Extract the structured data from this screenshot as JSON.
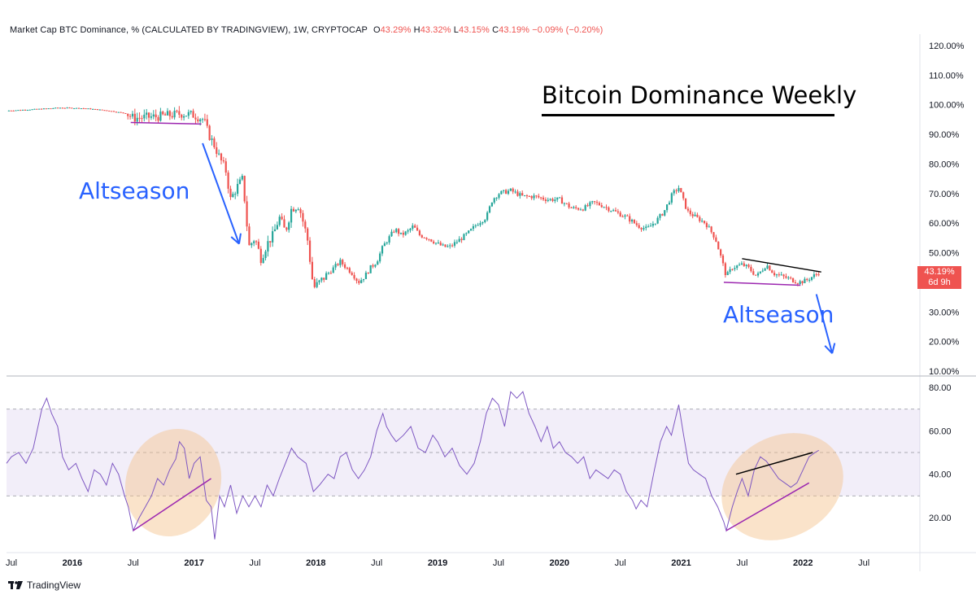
{
  "header": {
    "symbol_text": "Market Cap BTC Dominance, % (CALCULATED BY TRADINGVIEW), 1W, CRYPTOCAP",
    "open_label": "O",
    "open_value": "43.29%",
    "high_label": "H",
    "high_value": "43.32%",
    "low_label": "L",
    "low_value": "43.15%",
    "close_label": "C",
    "close_value": "43.19%",
    "change": "−0.09% (−0.20%)"
  },
  "title": "Bitcoin Dominance Weekly",
  "annotations": [
    "Altseason",
    "Altseason"
  ],
  "price_tag": {
    "value": "43.19%",
    "countdown": "6d 9h"
  },
  "brand": "TradingView",
  "colors": {
    "up": "#26a69a",
    "down": "#ef5350",
    "rsi": "#7e57c2",
    "arrow": "#2962ff",
    "divergence": "#9c27b0"
  },
  "chart_data": [
    {
      "type": "candlestick",
      "title": "Bitcoin Dominance Weekly",
      "ylim": [
        0,
        125
      ],
      "y_ticks": [
        "120.00%",
        "110.00%",
        "100.00%",
        "90.00%",
        "80.00%",
        "70.00%",
        "60.00%",
        "50.00%",
        "40.00%",
        "30.00%",
        "20.00%",
        "10.00%"
      ],
      "x_ticks": [
        "Jul",
        "2016",
        "Jul",
        "2017",
        "Jul",
        "2018",
        "Jul",
        "2019",
        "Jul",
        "2020",
        "Jul",
        "2021",
        "Jul",
        "2022",
        "Jul"
      ],
      "x_tick_dates": [
        2015.5,
        2016.0,
        2016.5,
        2017.0,
        2017.5,
        2018.0,
        2018.5,
        2019.0,
        2019.5,
        2020.0,
        2020.5,
        2021.0,
        2021.5,
        2022.0,
        2022.5
      ],
      "x_range": [
        2015.46,
        2022.96
      ],
      "close_path": [
        [
          2015.46,
          98.0
        ],
        [
          2015.7,
          98.5
        ],
        [
          2015.9,
          99.0
        ],
        [
          2016.1,
          98.8
        ],
        [
          2016.3,
          98.0
        ],
        [
          2016.45,
          97.0
        ],
        [
          2016.5,
          95.5
        ],
        [
          2016.7,
          96.0
        ],
        [
          2016.9,
          97.0
        ],
        [
          2017.0,
          96.5
        ],
        [
          2017.08,
          95.0
        ],
        [
          2017.12,
          90.0
        ],
        [
          2017.17,
          86.0
        ],
        [
          2017.21,
          82.0
        ],
        [
          2017.26,
          78.0
        ],
        [
          2017.3,
          68.0
        ],
        [
          2017.35,
          72.0
        ],
        [
          2017.4,
          75.0
        ],
        [
          2017.45,
          52.0
        ],
        [
          2017.5,
          55.0
        ],
        [
          2017.55,
          48.0
        ],
        [
          2017.6,
          53.0
        ],
        [
          2017.65,
          56.0
        ],
        [
          2017.7,
          62.0
        ],
        [
          2017.75,
          57.0
        ],
        [
          2017.8,
          65.0
        ],
        [
          2017.86,
          66.0
        ],
        [
          2017.93,
          55.0
        ],
        [
          2017.98,
          38.0
        ],
        [
          2018.03,
          40.0
        ],
        [
          2018.1,
          43.0
        ],
        [
          2018.15,
          45.0
        ],
        [
          2018.2,
          47.0
        ],
        [
          2018.25,
          45.0
        ],
        [
          2018.3,
          43.0
        ],
        [
          2018.35,
          40.0
        ],
        [
          2018.4,
          42.0
        ],
        [
          2018.45,
          45.0
        ],
        [
          2018.5,
          47.0
        ],
        [
          2018.55,
          52.0
        ],
        [
          2018.6,
          55.0
        ],
        [
          2018.65,
          58.0
        ],
        [
          2018.7,
          56.0
        ],
        [
          2018.75,
          57.0
        ],
        [
          2018.8,
          59.0
        ],
        [
          2018.85,
          56.0
        ],
        [
          2018.92,
          55.0
        ],
        [
          2019.0,
          53.0
        ],
        [
          2019.05,
          52.0
        ],
        [
          2019.1,
          52.0
        ],
        [
          2019.2,
          55.0
        ],
        [
          2019.26,
          57.0
        ],
        [
          2019.33,
          60.0
        ],
        [
          2019.4,
          62.0
        ],
        [
          2019.45,
          68.0
        ],
        [
          2019.5,
          70.0
        ],
        [
          2019.6,
          71.0
        ],
        [
          2019.7,
          69.0
        ],
        [
          2019.8,
          69.0
        ],
        [
          2019.9,
          68.0
        ],
        [
          2020.0,
          68.0
        ],
        [
          2020.1,
          65.0
        ],
        [
          2020.2,
          65.0
        ],
        [
          2020.28,
          67.0
        ],
        [
          2020.35,
          66.0
        ],
        [
          2020.45,
          64.0
        ],
        [
          2020.55,
          62.0
        ],
        [
          2020.65,
          59.0
        ],
        [
          2020.72,
          58.0
        ],
        [
          2020.8,
          61.0
        ],
        [
          2020.86,
          64.0
        ],
        [
          2020.93,
          70.0
        ],
        [
          2020.98,
          72.0
        ],
        [
          2021.05,
          64.0
        ],
        [
          2021.12,
          62.0
        ],
        [
          2021.2,
          60.0
        ],
        [
          2021.28,
          55.0
        ],
        [
          2021.33,
          48.0
        ],
        [
          2021.37,
          42.0
        ],
        [
          2021.42,
          45.0
        ],
        [
          2021.5,
          46.0
        ],
        [
          2021.55,
          45.0
        ],
        [
          2021.62,
          42.0
        ],
        [
          2021.7,
          46.0
        ],
        [
          2021.76,
          43.0
        ],
        [
          2021.83,
          42.0
        ],
        [
          2021.9,
          41.0
        ],
        [
          2021.96,
          40.0
        ],
        [
          2022.02,
          40.5
        ],
        [
          2022.08,
          42.0
        ],
        [
          2022.13,
          43.2
        ]
      ],
      "trendlines": [
        {
          "color": "purple",
          "from": [
            2016.48,
            94.0
          ],
          "to": [
            2017.06,
            93.5
          ]
        },
        {
          "color": "purple",
          "from": [
            2021.35,
            40.0
          ],
          "to": [
            2021.98,
            39.0
          ]
        },
        {
          "color": "black",
          "from": [
            2021.5,
            48.0
          ],
          "to": [
            2022.15,
            43.5
          ]
        }
      ],
      "arrows": [
        {
          "from": [
            2017.07,
            87.0
          ],
          "to": [
            2017.37,
            53.0
          ]
        },
        {
          "from": [
            2022.11,
            36.0
          ],
          "to": [
            2022.24,
            16.0
          ]
        }
      ]
    },
    {
      "type": "line",
      "series": [
        {
          "name": "",
          "values": []
        }
      ],
      "ylim": [
        0,
        85
      ],
      "y_ticks": [
        "80.00",
        "60.00",
        "40.00",
        "20.00"
      ],
      "bands": {
        "upper": 70,
        "middle": 50,
        "lower": 30
      },
      "rsi_path": [
        [
          2015.46,
          45
        ],
        [
          2015.5,
          48
        ],
        [
          2015.56,
          50
        ],
        [
          2015.62,
          45
        ],
        [
          2015.68,
          52
        ],
        [
          2015.75,
          70
        ],
        [
          2015.79,
          75
        ],
        [
          2015.83,
          68
        ],
        [
          2015.88,
          62
        ],
        [
          2015.92,
          48
        ],
        [
          2015.97,
          42
        ],
        [
          2016.03,
          45
        ],
        [
          2016.08,
          38
        ],
        [
          2016.13,
          32
        ],
        [
          2016.18,
          42
        ],
        [
          2016.23,
          40
        ],
        [
          2016.28,
          35
        ],
        [
          2016.33,
          45
        ],
        [
          2016.38,
          40
        ],
        [
          2016.43,
          30
        ],
        [
          2016.46,
          25
        ],
        [
          2016.5,
          14
        ],
        [
          2016.55,
          20
        ],
        [
          2016.6,
          25
        ],
        [
          2016.65,
          30
        ],
        [
          2016.7,
          38
        ],
        [
          2016.75,
          35
        ],
        [
          2016.8,
          42
        ],
        [
          2016.85,
          47
        ],
        [
          2016.88,
          55
        ],
        [
          2016.92,
          52
        ],
        [
          2016.96,
          38
        ],
        [
          2017.0,
          45
        ],
        [
          2017.05,
          48
        ],
        [
          2017.1,
          28
        ],
        [
          2017.14,
          25
        ],
        [
          2017.17,
          10
        ],
        [
          2017.21,
          30
        ],
        [
          2017.25,
          25
        ],
        [
          2017.3,
          35
        ],
        [
          2017.35,
          22
        ],
        [
          2017.4,
          30
        ],
        [
          2017.45,
          25
        ],
        [
          2017.5,
          30
        ],
        [
          2017.55,
          25
        ],
        [
          2017.6,
          35
        ],
        [
          2017.65,
          30
        ],
        [
          2017.7,
          38
        ],
        [
          2017.75,
          45
        ],
        [
          2017.8,
          52
        ],
        [
          2017.85,
          48
        ],
        [
          2017.92,
          45
        ],
        [
          2017.98,
          32
        ],
        [
          2018.03,
          35
        ],
        [
          2018.1,
          40
        ],
        [
          2018.15,
          38
        ],
        [
          2018.2,
          48
        ],
        [
          2018.25,
          50
        ],
        [
          2018.3,
          42
        ],
        [
          2018.35,
          38
        ],
        [
          2018.4,
          42
        ],
        [
          2018.45,
          48
        ],
        [
          2018.5,
          60
        ],
        [
          2018.55,
          68
        ],
        [
          2018.58,
          62
        ],
        [
          2018.62,
          58
        ],
        [
          2018.66,
          55
        ],
        [
          2018.72,
          58
        ],
        [
          2018.78,
          62
        ],
        [
          2018.84,
          52
        ],
        [
          2018.9,
          50
        ],
        [
          2018.96,
          58
        ],
        [
          2019.0,
          55
        ],
        [
          2019.06,
          48
        ],
        [
          2019.12,
          52
        ],
        [
          2019.18,
          44
        ],
        [
          2019.24,
          40
        ],
        [
          2019.3,
          45
        ],
        [
          2019.35,
          55
        ],
        [
          2019.4,
          68
        ],
        [
          2019.45,
          75
        ],
        [
          2019.5,
          72
        ],
        [
          2019.55,
          62
        ],
        [
          2019.6,
          78
        ],
        [
          2019.65,
          75
        ],
        [
          2019.7,
          78
        ],
        [
          2019.75,
          68
        ],
        [
          2019.8,
          62
        ],
        [
          2019.85,
          55
        ],
        [
          2019.9,
          62
        ],
        [
          2019.95,
          52
        ],
        [
          2020.0,
          55
        ],
        [
          2020.05,
          50
        ],
        [
          2020.1,
          48
        ],
        [
          2020.15,
          45
        ],
        [
          2020.2,
          48
        ],
        [
          2020.25,
          38
        ],
        [
          2020.3,
          42
        ],
        [
          2020.35,
          40
        ],
        [
          2020.4,
          38
        ],
        [
          2020.45,
          42
        ],
        [
          2020.5,
          40
        ],
        [
          2020.55,
          32
        ],
        [
          2020.6,
          28
        ],
        [
          2020.63,
          24
        ],
        [
          2020.67,
          28
        ],
        [
          2020.72,
          25
        ],
        [
          2020.78,
          42
        ],
        [
          2020.83,
          55
        ],
        [
          2020.88,
          62
        ],
        [
          2020.92,
          58
        ],
        [
          2020.98,
          72
        ],
        [
          2021.02,
          58
        ],
        [
          2021.06,
          45
        ],
        [
          2021.1,
          42
        ],
        [
          2021.15,
          40
        ],
        [
          2021.2,
          38
        ],
        [
          2021.25,
          30
        ],
        [
          2021.3,
          25
        ],
        [
          2021.35,
          18
        ],
        [
          2021.37,
          14
        ],
        [
          2021.42,
          25
        ],
        [
          2021.46,
          32
        ],
        [
          2021.5,
          38
        ],
        [
          2021.55,
          30
        ],
        [
          2021.6,
          42
        ],
        [
          2021.65,
          48
        ],
        [
          2021.7,
          46
        ],
        [
          2021.75,
          42
        ],
        [
          2021.8,
          38
        ],
        [
          2021.85,
          36
        ],
        [
          2021.9,
          34
        ],
        [
          2021.95,
          36
        ],
        [
          2022.0,
          42
        ],
        [
          2022.05,
          48
        ],
        [
          2022.1,
          50
        ],
        [
          2022.13,
          51
        ]
      ],
      "divergence_lines": [
        {
          "color": "purple",
          "from": [
            2016.5,
            14
          ],
          "to": [
            2017.14,
            38
          ]
        },
        {
          "color": "purple",
          "from": [
            2021.37,
            14
          ],
          "to": [
            2022.05,
            36
          ]
        },
        {
          "color": "black",
          "from": [
            2021.45,
            40
          ],
          "to": [
            2022.08,
            50
          ]
        }
      ]
    }
  ]
}
